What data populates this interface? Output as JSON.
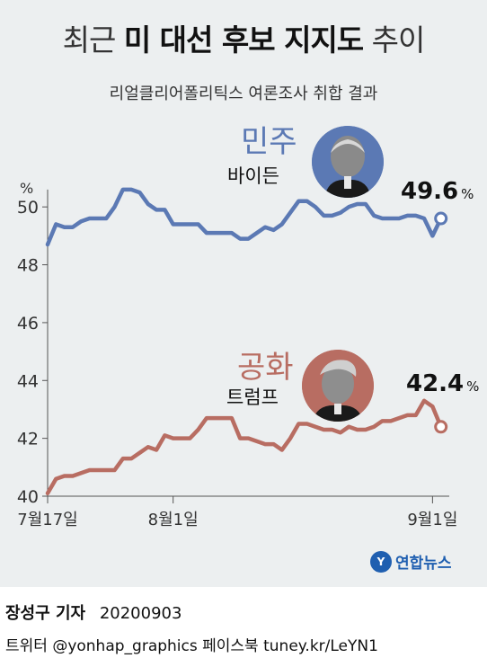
{
  "header": {
    "title_part1": "최근",
    "title_bold": "미 대선 후보 지지도",
    "title_part2": "추이",
    "subtitle": "리얼클리어폴리틱스 여론조사 취합 결과"
  },
  "candidates": {
    "democrat": {
      "party": "민주",
      "name": "바이든",
      "latest": "49.6",
      "color": "#5b79b4",
      "portrait_icon": "biden-portrait"
    },
    "republican": {
      "party": "공화",
      "name": "트럼프",
      "latest": "42.4",
      "color": "#b86d62",
      "portrait_icon": "trump-portrait"
    }
  },
  "chart_data": {
    "type": "line",
    "ylabel": "%",
    "ylim": [
      40,
      51
    ],
    "yticks": [
      40,
      42,
      44,
      46,
      48,
      50
    ],
    "xlim": [
      0,
      48
    ],
    "xticks": [
      {
        "x": 0,
        "label": "7월17일"
      },
      {
        "x": 15,
        "label": "8월1일"
      },
      {
        "x": 46,
        "label": "9월1일"
      }
    ],
    "grid": false,
    "series": [
      {
        "name": "민주",
        "color": "#5b79b4",
        "values": [
          [
            0,
            48.7
          ],
          [
            1,
            49.4
          ],
          [
            2,
            49.3
          ],
          [
            3,
            49.3
          ],
          [
            4,
            49.5
          ],
          [
            5,
            49.6
          ],
          [
            6,
            49.6
          ],
          [
            7,
            49.6
          ],
          [
            8,
            50.0
          ],
          [
            9,
            50.6
          ],
          [
            10,
            50.6
          ],
          [
            11,
            50.5
          ],
          [
            12,
            50.1
          ],
          [
            13,
            49.9
          ],
          [
            14,
            49.9
          ],
          [
            15,
            49.4
          ],
          [
            16,
            49.4
          ],
          [
            17,
            49.4
          ],
          [
            18,
            49.4
          ],
          [
            19,
            49.1
          ],
          [
            20,
            49.1
          ],
          [
            21,
            49.1
          ],
          [
            22,
            49.1
          ],
          [
            23,
            48.9
          ],
          [
            24,
            48.9
          ],
          [
            25,
            49.1
          ],
          [
            26,
            49.3
          ],
          [
            27,
            49.2
          ],
          [
            28,
            49.4
          ],
          [
            29,
            49.8
          ],
          [
            30,
            50.2
          ],
          [
            31,
            50.2
          ],
          [
            32,
            50.0
          ],
          [
            33,
            49.7
          ],
          [
            34,
            49.7
          ],
          [
            35,
            49.8
          ],
          [
            36,
            50.0
          ],
          [
            37,
            50.1
          ],
          [
            38,
            50.1
          ],
          [
            39,
            49.7
          ],
          [
            40,
            49.6
          ],
          [
            41,
            49.6
          ],
          [
            42,
            49.6
          ],
          [
            43,
            49.7
          ],
          [
            44,
            49.7
          ],
          [
            45,
            49.6
          ],
          [
            46,
            49.0
          ],
          [
            47,
            49.6
          ]
        ],
        "latest": 49.6
      },
      {
        "name": "공화",
        "color": "#b86d62",
        "values": [
          [
            0,
            40.1
          ],
          [
            1,
            40.6
          ],
          [
            2,
            40.7
          ],
          [
            3,
            40.7
          ],
          [
            4,
            40.8
          ],
          [
            5,
            40.9
          ],
          [
            6,
            40.9
          ],
          [
            7,
            40.9
          ],
          [
            8,
            40.9
          ],
          [
            9,
            41.3
          ],
          [
            10,
            41.3
          ],
          [
            11,
            41.5
          ],
          [
            12,
            41.7
          ],
          [
            13,
            41.6
          ],
          [
            14,
            42.1
          ],
          [
            15,
            42.0
          ],
          [
            16,
            42.0
          ],
          [
            17,
            42.0
          ],
          [
            18,
            42.3
          ],
          [
            19,
            42.7
          ],
          [
            20,
            42.7
          ],
          [
            21,
            42.7
          ],
          [
            22,
            42.7
          ],
          [
            23,
            42.0
          ],
          [
            24,
            42.0
          ],
          [
            25,
            41.9
          ],
          [
            26,
            41.8
          ],
          [
            27,
            41.8
          ],
          [
            28,
            41.6
          ],
          [
            29,
            42.0
          ],
          [
            30,
            42.5
          ],
          [
            31,
            42.5
          ],
          [
            32,
            42.4
          ],
          [
            33,
            42.3
          ],
          [
            34,
            42.3
          ],
          [
            35,
            42.2
          ],
          [
            36,
            42.4
          ],
          [
            37,
            42.3
          ],
          [
            38,
            42.3
          ],
          [
            39,
            42.4
          ],
          [
            40,
            42.6
          ],
          [
            41,
            42.6
          ],
          [
            42,
            42.7
          ],
          [
            43,
            42.8
          ],
          [
            44,
            42.8
          ],
          [
            45,
            43.3
          ],
          [
            46,
            43.1
          ],
          [
            47,
            42.4
          ]
        ],
        "latest": 42.4
      }
    ]
  },
  "latest_unit": "%",
  "logo": {
    "mark": "Y",
    "text": "연합뉴스",
    "icon": "yonhap-logo-icon"
  },
  "credits": {
    "reporter": "장성구 기자",
    "date": "20200903",
    "social": "트위터 @yonhap_graphics  페이스북 tuney.kr/LeYN1"
  }
}
